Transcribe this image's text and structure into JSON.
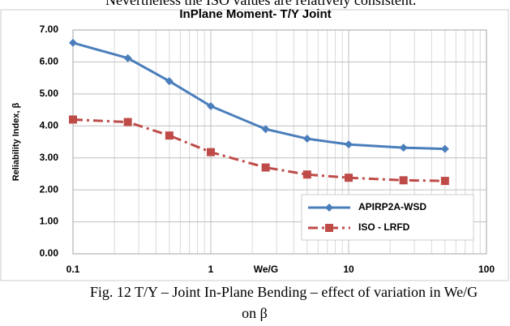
{
  "top_text": "Nevertheless the ISO values are relatively consistent.",
  "chart_data": {
    "type": "line",
    "title": "InPlane Moment- T/Y Joint",
    "x_label": "We/G",
    "y_label": "Reliability Index, β",
    "x": [
      0.1,
      0.25,
      0.5,
      1,
      2.5,
      5,
      10,
      25,
      50
    ],
    "series": [
      {
        "name": "APIRP2A-WSD",
        "color": "#4a7ebb",
        "dash": "solid",
        "marker": "diamond",
        "values": [
          6.6,
          6.12,
          5.4,
          4.62,
          3.9,
          3.6,
          3.42,
          3.32,
          3.28
        ]
      },
      {
        "name": "ISO - LRFD",
        "color": "#be4b48",
        "dash": "dashdot",
        "marker": "square",
        "values": [
          4.2,
          4.12,
          3.7,
          3.18,
          2.7,
          2.48,
          2.38,
          2.3,
          2.28
        ]
      }
    ],
    "xlim": [
      0.1,
      100
    ],
    "xscale": "log",
    "xticks": [
      0.1,
      1,
      10,
      100
    ],
    "ylim": [
      0,
      7
    ],
    "yticks": [
      {
        "value": 0,
        "label": "0.00"
      },
      {
        "value": 1,
        "label": "1.00"
      },
      {
        "value": 2,
        "label": "2.00"
      },
      {
        "value": 3,
        "label": "3.00"
      },
      {
        "value": 4,
        "label": "4.00"
      },
      {
        "value": 5,
        "label": "5.00"
      },
      {
        "value": 6,
        "label": "6.00"
      },
      {
        "value": 7,
        "label": "7.00"
      }
    ],
    "grid": true,
    "legend": "lower right"
  },
  "caption": [
    "Fig. 12 T/Y – Joint In-Plane Bending – effect of variation in We/G",
    "on β"
  ]
}
